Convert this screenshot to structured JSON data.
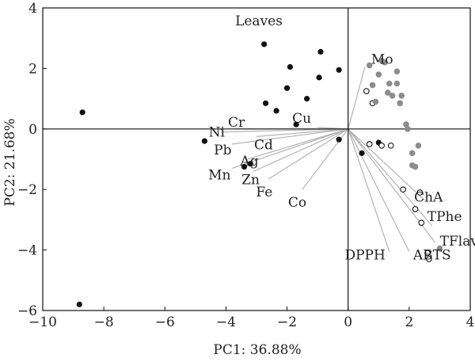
{
  "chart_data": {
    "type": "scatter",
    "title": "Leaves",
    "xlabel": "PC1: 36.88%",
    "ylabel": "PC2: 21.68%",
    "xlim": [
      -10,
      4
    ],
    "ylim": [
      -6,
      4
    ],
    "x_ticks": [
      -10,
      -8,
      -6,
      -4,
      -2,
      0,
      2,
      4
    ],
    "y_ticks": [
      -6,
      -4,
      -2,
      0,
      2,
      4
    ],
    "x_tick_labels": [
      "−10",
      "−8",
      "−6",
      "−4",
      "−2",
      "0",
      "2",
      "4"
    ],
    "y_tick_labels": [
      "−6",
      "−4",
      "−2",
      "0",
      "2",
      "4"
    ],
    "grid": false,
    "origin_lines": true,
    "colors": {
      "black_points": "#111111",
      "gray_points": "#8c8c8c",
      "open_points_stroke": "#111111",
      "loading_lines": "#b3b3b3",
      "axes": "#111111"
    },
    "series": [
      {
        "marker": "filled-black",
        "points": [
          [
            -8.8,
            -5.8
          ],
          [
            -8.7,
            0.55
          ],
          [
            -4.7,
            -0.4
          ],
          [
            -3.4,
            -1.25
          ],
          [
            -3.2,
            -1.15
          ],
          [
            -2.75,
            2.8
          ],
          [
            -2.7,
            0.85
          ],
          [
            -2.35,
            0.6
          ],
          [
            -2.0,
            1.35
          ],
          [
            -1.9,
            2.05
          ],
          [
            -1.7,
            0.15
          ],
          [
            -1.35,
            1.0
          ],
          [
            -0.95,
            1.7
          ],
          [
            -0.9,
            2.55
          ],
          [
            -0.3,
            1.95
          ],
          [
            -0.3,
            -0.35
          ],
          [
            0.45,
            -0.8
          ],
          [
            1.0,
            -0.45
          ]
        ]
      },
      {
        "marker": "open-circle",
        "points": [
          [
            0.6,
            1.25
          ],
          [
            0.7,
            -0.5
          ],
          [
            0.8,
            0.85
          ],
          [
            1.1,
            -0.55
          ],
          [
            1.4,
            -0.55
          ],
          [
            1.8,
            -2.0
          ],
          [
            2.2,
            -2.65
          ],
          [
            2.35,
            -2.1
          ],
          [
            2.4,
            -3.1
          ],
          [
            2.6,
            -4.1
          ],
          [
            2.65,
            -4.3
          ]
        ]
      },
      {
        "marker": "filled-gray",
        "points": [
          [
            0.7,
            2.1
          ],
          [
            0.8,
            1.45
          ],
          [
            0.9,
            0.9
          ],
          [
            1.0,
            1.8
          ],
          [
            1.1,
            2.25
          ],
          [
            1.2,
            2.2
          ],
          [
            1.3,
            1.2
          ],
          [
            1.35,
            1.5
          ],
          [
            1.45,
            1.1
          ],
          [
            1.6,
            1.5
          ],
          [
            1.6,
            1.9
          ],
          [
            1.7,
            0.85
          ],
          [
            1.75,
            1.1
          ],
          [
            1.9,
            0.15
          ],
          [
            1.95,
            0.0
          ],
          [
            2.1,
            -0.8
          ],
          [
            2.1,
            -1.2
          ],
          [
            2.2,
            -1.25
          ],
          [
            2.3,
            -0.55
          ],
          [
            3.0,
            -3.95
          ]
        ]
      }
    ],
    "loadings": [
      {
        "label": "Mo",
        "x": 0.55,
        "y": 2.05
      },
      {
        "label": "Cu",
        "x": -1.0,
        "y": 0.05
      },
      {
        "label": "Cr",
        "x": -3.7,
        "y": 0.0
      },
      {
        "label": "Ni",
        "x": -4.15,
        "y": -0.1
      },
      {
        "label": "Cd",
        "x": -3.0,
        "y": -0.25
      },
      {
        "label": "Pb",
        "x": -3.8,
        "y": -0.5
      },
      {
        "label": "Ag",
        "x": -3.3,
        "y": -1.0
      },
      {
        "label": "Mn",
        "x": -3.8,
        "y": -1.3
      },
      {
        "label": "Zn",
        "x": -3.1,
        "y": -1.4
      },
      {
        "label": "Fe",
        "x": -2.6,
        "y": -1.65
      },
      {
        "label": "Co",
        "x": -1.5,
        "y": -2.0
      },
      {
        "label": "ChA",
        "x": 2.5,
        "y": -2.35
      },
      {
        "label": "TPhe",
        "x": 2.75,
        "y": -3.2
      },
      {
        "label": "TFlav",
        "x": 2.85,
        "y": -3.75
      },
      {
        "label": "ABTS",
        "x": 2.0,
        "y": -4.05
      },
      {
        "label": "DPPH",
        "x": 1.35,
        "y": -4.05
      }
    ]
  }
}
